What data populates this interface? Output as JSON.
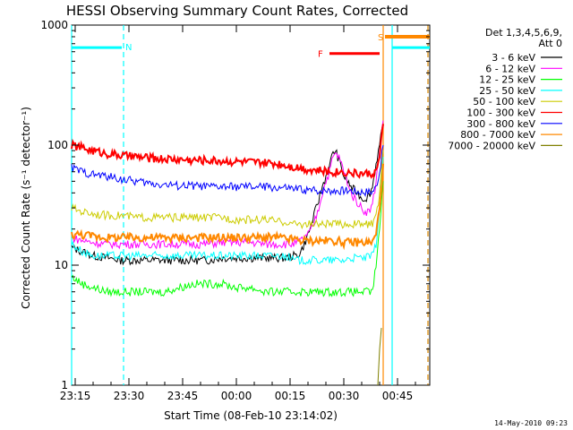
{
  "chart_data": {
    "type": "line",
    "title": "HESSI Observing Summary Count Rates, Corrected",
    "xlabel": "Start Time (08-Feb-10 23:14:02)",
    "ylabel": "Corrected Count Rate (s⁻¹ detector⁻¹)",
    "yscale": "log",
    "ylim": [
      1,
      1000
    ],
    "xlim_minutes_from_23:14:02": [
      0,
      100
    ],
    "x_ticks": [
      "23:15",
      "23:30",
      "23:45",
      "00:00",
      "00:15",
      "00:30",
      "00:45"
    ],
    "y_ticks": [
      "1",
      "10",
      "100",
      "1000"
    ],
    "grid": false,
    "legend_header": [
      "Det 1,3,4,5,6,9,",
      "Att 0"
    ],
    "legend_placement": "right",
    "series": [
      {
        "name": "3 - 6 keV",
        "color": "#000000",
        "x": [
          0,
          3,
          6,
          10,
          14,
          18,
          22,
          26,
          30,
          34,
          38,
          42,
          46,
          50,
          54,
          58,
          60,
          62,
          63,
          64,
          65,
          66,
          67,
          68,
          69,
          70,
          71,
          72,
          73,
          74,
          75,
          76,
          77,
          78,
          79,
          80,
          81,
          82,
          83,
          84,
          85,
          86,
          87
        ],
        "y": [
          14,
          13,
          12,
          11.5,
          11,
          11,
          11,
          11,
          11,
          11,
          11,
          11.5,
          11.5,
          11.5,
          11.5,
          11.5,
          11.5,
          12,
          12,
          13,
          15,
          18,
          22,
          28,
          35,
          45,
          55,
          65,
          90,
          85,
          70,
          55,
          50,
          45,
          42,
          40,
          36,
          36,
          38,
          45,
          70,
          100,
          150
        ]
      },
      {
        "name": "6 - 12 keV",
        "color": "#ff00ff",
        "x": [
          0,
          3,
          6,
          10,
          14,
          18,
          22,
          26,
          30,
          34,
          38,
          42,
          46,
          50,
          54,
          58,
          60,
          62,
          63,
          64,
          65,
          66,
          67,
          68,
          69,
          70,
          71,
          72,
          73,
          74,
          75,
          76,
          77,
          78,
          79,
          80,
          81,
          82,
          83,
          84,
          85,
          86,
          87
        ],
        "y": [
          17,
          16,
          15.5,
          15,
          15,
          15,
          15,
          15,
          15,
          15,
          15,
          15.5,
          15.5,
          15.5,
          15,
          15,
          15,
          15,
          15.5,
          16,
          17,
          18,
          20,
          24,
          30,
          40,
          50,
          60,
          80,
          85,
          75,
          60,
          50,
          40,
          36,
          33,
          30,
          28,
          28,
          32,
          50,
          90,
          160
        ]
      },
      {
        "name": "12 - 25 keV",
        "color": "#00ff00",
        "x": [
          0,
          3,
          6,
          10,
          14,
          18,
          22,
          26,
          30,
          34,
          38,
          42,
          46,
          50,
          54,
          58,
          60,
          62,
          64,
          66,
          68,
          70,
          72,
          74,
          76,
          78,
          80,
          82,
          84,
          85,
          86,
          87
        ],
        "y": [
          8,
          7,
          6.5,
          6,
          6,
          6,
          6,
          6,
          6.5,
          7,
          7,
          7,
          6.5,
          6.5,
          6,
          6,
          6,
          6,
          6,
          6,
          6,
          6,
          6,
          6,
          6,
          6,
          6,
          6,
          6,
          10,
          20,
          50
        ]
      },
      {
        "name": "25 - 50 keV",
        "color": "#00ffff",
        "x": [
          0,
          3,
          6,
          10,
          14,
          18,
          22,
          26,
          30,
          34,
          38,
          42,
          46,
          50,
          54,
          58,
          60,
          62,
          64,
          66,
          68,
          70,
          72,
          74,
          76,
          78,
          80,
          82,
          84,
          85,
          86,
          87
        ],
        "y": [
          15,
          13,
          12,
          12,
          12,
          12,
          12,
          12,
          12,
          12,
          12,
          12,
          12,
          12,
          12,
          12,
          12,
          11,
          11,
          11,
          11,
          11,
          11,
          11,
          11,
          11.5,
          11.5,
          11.5,
          12,
          15,
          30,
          80
        ]
      },
      {
        "name": "50 - 100 keV",
        "color": "#cccc00",
        "x": [
          0,
          3,
          6,
          10,
          14,
          18,
          22,
          26,
          30,
          34,
          38,
          42,
          46,
          50,
          54,
          58,
          60,
          62,
          64,
          66,
          68,
          70,
          72,
          74,
          76,
          78,
          80,
          82,
          84,
          85,
          86,
          87
        ],
        "y": [
          30,
          28,
          27,
          26,
          26,
          25,
          25,
          25,
          25,
          25,
          25,
          25,
          24,
          24,
          24,
          23,
          23,
          22,
          22,
          22,
          22,
          22,
          22,
          22,
          22,
          22,
          22,
          22,
          22,
          25,
          40,
          90
        ]
      },
      {
        "name": "100 - 300 keV",
        "color": "#ff0000",
        "x": [
          0,
          3,
          6,
          10,
          14,
          18,
          22,
          26,
          30,
          34,
          38,
          42,
          46,
          50,
          54,
          58,
          60,
          62,
          64,
          66,
          68,
          70,
          72,
          74,
          76,
          78,
          80,
          82,
          84,
          85,
          86,
          87
        ],
        "y": [
          100,
          95,
          90,
          85,
          82,
          80,
          78,
          77,
          76,
          75,
          75,
          74,
          73,
          72,
          71,
          70,
          68,
          66,
          65,
          63,
          62,
          61,
          60,
          60,
          60,
          59,
          58,
          58,
          58,
          60,
          80,
          150
        ]
      },
      {
        "name": "300 - 800 keV",
        "color": "#0000ff",
        "x": [
          0,
          3,
          6,
          10,
          14,
          18,
          22,
          26,
          30,
          34,
          38,
          42,
          46,
          50,
          54,
          58,
          60,
          62,
          64,
          66,
          68,
          70,
          72,
          74,
          76,
          78,
          80,
          82,
          84,
          85,
          86,
          87
        ],
        "y": [
          65,
          60,
          57,
          55,
          52,
          50,
          48,
          47,
          46,
          46,
          45,
          45,
          45,
          45,
          45,
          44,
          44,
          43,
          43,
          42,
          42,
          42,
          42,
          42,
          42,
          42,
          41,
          41,
          41,
          45,
          60,
          100
        ]
      },
      {
        "name": "800 - 7000 keV",
        "color": "#ff8800",
        "x": [
          0,
          3,
          6,
          10,
          14,
          18,
          22,
          26,
          30,
          34,
          38,
          42,
          46,
          50,
          54,
          58,
          60,
          62,
          64,
          66,
          68,
          70,
          72,
          74,
          76,
          78,
          80,
          82,
          84,
          85,
          86,
          87
        ],
        "y": [
          18,
          18,
          17.5,
          17,
          17,
          17,
          17,
          17,
          17,
          17,
          17,
          17,
          17,
          17,
          17,
          17,
          16.5,
          16.5,
          16,
          16,
          16,
          16,
          16,
          16,
          15.5,
          15.5,
          15.5,
          15.5,
          15.5,
          18,
          30,
          70
        ]
      },
      {
        "name": "7000 - 20000 keV",
        "color": "#808000",
        "x": [
          85.5,
          86,
          86.5
        ],
        "y": [
          1,
          2,
          3
        ]
      }
    ],
    "markers": {
      "attenuator_orange_S": {
        "label": "S",
        "color": "#ff8800",
        "x_from": 87.5,
        "x_to": 100,
        "y": 800
      },
      "flare_red_F": {
        "label": "F",
        "color": "#ff0000",
        "x_from": 72,
        "x_to": 86,
        "y": 580
      },
      "night_cyan_N": {
        "label": "N",
        "color": "#00ffff",
        "segments": [
          [
            0,
            14
          ],
          [
            89.5,
            100
          ]
        ],
        "y": 650
      }
    },
    "vertical_lines": [
      {
        "x": 0,
        "color": "#00ffff",
        "style": "solid"
      },
      {
        "x": 14.5,
        "color": "#00ffff",
        "style": "dashed"
      },
      {
        "x": 89.5,
        "color": "#00ffff",
        "style": "solid"
      },
      {
        "x": 99.5,
        "color": "#00ffff",
        "style": "dashed"
      },
      {
        "x": 87,
        "color": "#ff8800",
        "style": "solid"
      },
      {
        "x": 99.5,
        "color": "#ff8800",
        "style": "dashed"
      }
    ]
  },
  "footer": {
    "date_stamp": "14-May-2010 09:23"
  }
}
